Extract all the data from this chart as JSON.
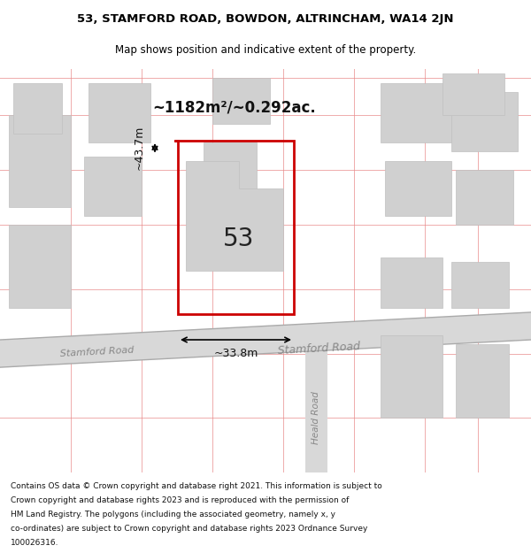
{
  "title_line1": "53, STAMFORD ROAD, BOWDON, ALTRINCHAM, WA14 2JN",
  "title_line2": "Map shows position and indicative extent of the property.",
  "area_label": "~1182m²/~0.292ac.",
  "property_number": "53",
  "width_label": "~33.8m",
  "height_label": "~43.7m",
  "road_label1": "Stamford Road",
  "road_label2": "Stamford Road",
  "road_label3": "Heald Road",
  "footer_text": "Contains OS data © Crown copyright and database right 2021. This information is subject to Crown copyright and database rights 2023 and is reproduced with the permission of HM Land Registry. The polygons (including the associated geometry, namely x, y co-ordinates) are subject to Crown copyright and database rights 2023 Ordnance Survey 100026316.",
  "background_color": "#f5f5f5",
  "map_bg": "#ffffff",
  "property_outline_color": "#cc0000",
  "building_fill": "#d0d0d0",
  "road_color": "#c8c8c8",
  "road_line_color": "#e8a0a0",
  "footer_bg": "#ffffff",
  "title_area_bg": "#ffffff"
}
